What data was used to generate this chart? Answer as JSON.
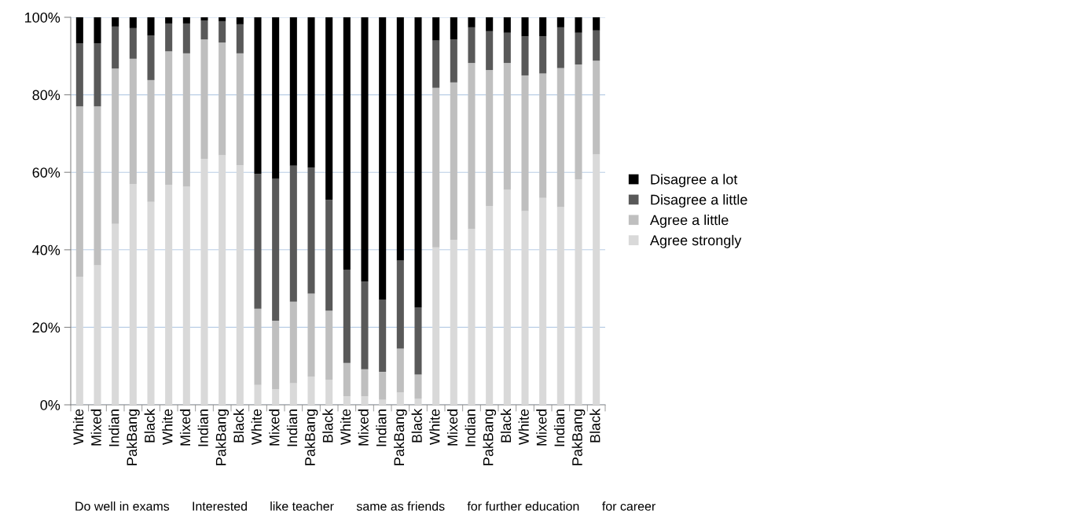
{
  "chart_data": {
    "type": "bar",
    "stacked": true,
    "categories": [
      "White",
      "Mixed",
      "Indian",
      "PakBang",
      "Black",
      "White",
      "Mixed",
      "Indian",
      "PakBang",
      "Black",
      "White",
      "Mixed",
      "Indian",
      "PakBang",
      "Black",
      "White",
      "Mixed",
      "Indian",
      "PakBang",
      "Black",
      "White",
      "Mixed",
      "Indian",
      "PakBang",
      "Black",
      "White",
      "Mixed",
      "Indian",
      "PakBang",
      "Black"
    ],
    "series": [
      {
        "name": "Agree strongly",
        "color": "#d9d9d9",
        "values": [
          33,
          36,
          46.7,
          57,
          52.4,
          56.8,
          56.3,
          63.5,
          64.4,
          61.8,
          5.1,
          4,
          5.6,
          7.3,
          6.5,
          2.2,
          2.2,
          1.3,
          3.2,
          1.6,
          40.6,
          42.6,
          45.4,
          51.3,
          55.5,
          50,
          53.4,
          51,
          58.2,
          64.6
        ]
      },
      {
        "name": "Agree a little",
        "color": "#bfbfbf",
        "values": [
          44,
          41,
          40.1,
          32.3,
          31.4,
          34.4,
          34.4,
          30.8,
          29.1,
          28.9,
          19.7,
          17.7,
          21,
          21.4,
          17.8,
          8.6,
          7,
          7.2,
          11.3,
          6.2,
          41.2,
          40.6,
          42.8,
          35.1,
          32.7,
          35,
          32.1,
          35.9,
          29.6,
          24.2
        ]
      },
      {
        "name": "Disagree a little",
        "color": "#595959",
        "values": [
          16.3,
          16.3,
          10.8,
          7.9,
          11.5,
          7.2,
          7.7,
          4.9,
          5.5,
          7.5,
          34.8,
          36.6,
          35.1,
          32.5,
          28.6,
          24.1,
          22.6,
          18.6,
          22.7,
          17.3,
          12.2,
          11.1,
          9.2,
          10,
          7.8,
          10.1,
          9.6,
          10.5,
          8.2,
          7.8
        ]
      },
      {
        "name": "Disagree a lot",
        "color": "#000000",
        "values": [
          6.7,
          6.7,
          2.4,
          2.8,
          4.7,
          1.6,
          1.6,
          0.8,
          1,
          1.8,
          40.4,
          41.7,
          38.3,
          38.8,
          47.1,
          65.1,
          68.2,
          72.9,
          62.8,
          74.9,
          6,
          5.7,
          2.6,
          3.6,
          4,
          4.9,
          4.9,
          2.6,
          4,
          3.4
        ]
      }
    ],
    "ylim": [
      0,
      100
    ],
    "yticks": [
      {
        "value": 0,
        "label": "0%"
      },
      {
        "value": 20,
        "label": "20%"
      },
      {
        "value": 40,
        "label": "40%"
      },
      {
        "value": 60,
        "label": "60%"
      },
      {
        "value": 80,
        "label": "80%"
      },
      {
        "value": 100,
        "label": "100%"
      }
    ],
    "grid": "y",
    "legend": "right",
    "annotations": [
      "Do well in exams",
      "Interested",
      "like teacher",
      "same as friends",
      "for further education",
      "for career"
    ]
  }
}
